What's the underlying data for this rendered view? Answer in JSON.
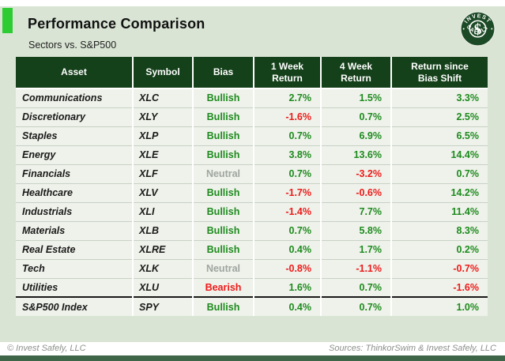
{
  "header": {
    "title": "Performance Comparison",
    "subtitle": "Sectors vs. S&P500",
    "logo": {
      "top_text": "INVEST",
      "bottom_text": "SAFELY",
      "center_symbol": "$"
    }
  },
  "chart_data": {
    "type": "table",
    "title": "Performance Comparison",
    "subtitle": "Sectors vs. S&P500",
    "columns": [
      {
        "id": "asset",
        "label": "Asset"
      },
      {
        "id": "symbol",
        "label": "Symbol"
      },
      {
        "id": "bias",
        "label": "Bias"
      },
      {
        "id": "w1",
        "label": "1 Week\nReturn"
      },
      {
        "id": "w4",
        "label": "4 Week\nReturn"
      },
      {
        "id": "since",
        "label": "Return since\nBias Shift"
      }
    ],
    "rows": [
      {
        "asset": "Communications",
        "symbol": "XLC",
        "bias": "Bullish",
        "bias_color": "green",
        "one_week": "2.7%",
        "one_week_color": "green",
        "four_week": "1.5%",
        "four_week_color": "green",
        "since_shift": "3.3%",
        "since_shift_color": "green",
        "separator_above": false
      },
      {
        "asset": "Discretionary",
        "symbol": "XLY",
        "bias": "Bullish",
        "bias_color": "green",
        "one_week": "-1.6%",
        "one_week_color": "red",
        "four_week": "0.7%",
        "four_week_color": "green",
        "since_shift": "2.5%",
        "since_shift_color": "green",
        "separator_above": false
      },
      {
        "asset": "Staples",
        "symbol": "XLP",
        "bias": "Bullish",
        "bias_color": "green",
        "one_week": "0.7%",
        "one_week_color": "green",
        "four_week": "6.9%",
        "four_week_color": "green",
        "since_shift": "6.5%",
        "since_shift_color": "green",
        "separator_above": false
      },
      {
        "asset": "Energy",
        "symbol": "XLE",
        "bias": "Bullish",
        "bias_color": "green",
        "one_week": "3.8%",
        "one_week_color": "green",
        "four_week": "13.6%",
        "four_week_color": "green",
        "since_shift": "14.4%",
        "since_shift_color": "green",
        "separator_above": false
      },
      {
        "asset": "Financials",
        "symbol": "XLF",
        "bias": "Neutral",
        "bias_color": "gray",
        "one_week": "0.7%",
        "one_week_color": "green",
        "four_week": "-3.2%",
        "four_week_color": "red",
        "since_shift": "0.7%",
        "since_shift_color": "green",
        "separator_above": false
      },
      {
        "asset": "Healthcare",
        "symbol": "XLV",
        "bias": "Bullish",
        "bias_color": "green",
        "one_week": "-1.7%",
        "one_week_color": "red",
        "four_week": "-0.6%",
        "four_week_color": "red",
        "since_shift": "14.2%",
        "since_shift_color": "green",
        "separator_above": false
      },
      {
        "asset": "Industrials",
        "symbol": "XLI",
        "bias": "Bullish",
        "bias_color": "green",
        "one_week": "-1.4%",
        "one_week_color": "red",
        "four_week": "7.7%",
        "four_week_color": "green",
        "since_shift": "11.4%",
        "since_shift_color": "green",
        "separator_above": false
      },
      {
        "asset": "Materials",
        "symbol": "XLB",
        "bias": "Bullish",
        "bias_color": "green",
        "one_week": "0.7%",
        "one_week_color": "green",
        "four_week": "5.8%",
        "four_week_color": "green",
        "since_shift": "8.3%",
        "since_shift_color": "green",
        "separator_above": false
      },
      {
        "asset": "Real Estate",
        "symbol": "XLRE",
        "bias": "Bullish",
        "bias_color": "green",
        "one_week": "0.4%",
        "one_week_color": "green",
        "four_week": "1.7%",
        "four_week_color": "green",
        "since_shift": "0.2%",
        "since_shift_color": "green",
        "separator_above": false
      },
      {
        "asset": "Tech",
        "symbol": "XLK",
        "bias": "Neutral",
        "bias_color": "gray",
        "one_week": "-0.8%",
        "one_week_color": "red",
        "four_week": "-1.1%",
        "four_week_color": "red",
        "since_shift": "-0.7%",
        "since_shift_color": "red",
        "separator_above": false
      },
      {
        "asset": "Utilities",
        "symbol": "XLU",
        "bias": "Bearish",
        "bias_color": "red",
        "one_week": "1.6%",
        "one_week_color": "green",
        "four_week": "0.7%",
        "four_week_color": "green",
        "since_shift": "-1.6%",
        "since_shift_color": "red",
        "separator_above": false
      },
      {
        "asset": "S&P500 Index",
        "symbol": "SPY",
        "bias": "Bullish",
        "bias_color": "green",
        "one_week": "0.4%",
        "one_week_color": "green",
        "four_week": "0.7%",
        "four_week_color": "green",
        "since_shift": "1.0%",
        "since_shift_color": "green",
        "separator_above": true
      }
    ],
    "layout": {
      "grid": "white column separators, light gray row separators",
      "legend": "none"
    }
  },
  "footer": {
    "copyright": "© Invest Safely, LLC",
    "sources": "Sources: ThinkorSwim & Invest Safely, LLC"
  },
  "colors": {
    "band_background": "#d9e4d4",
    "accent_square": "#2ecc33",
    "table_header_bg": "#14401a",
    "row_bg": "#eef2ea",
    "positive_green": "#1e8a1e",
    "negative_red": "#ee1a1a",
    "neutral_gray": "#a0a5a0",
    "logo_green": "#1d4a26",
    "bottom_bar": "#3e6547"
  }
}
